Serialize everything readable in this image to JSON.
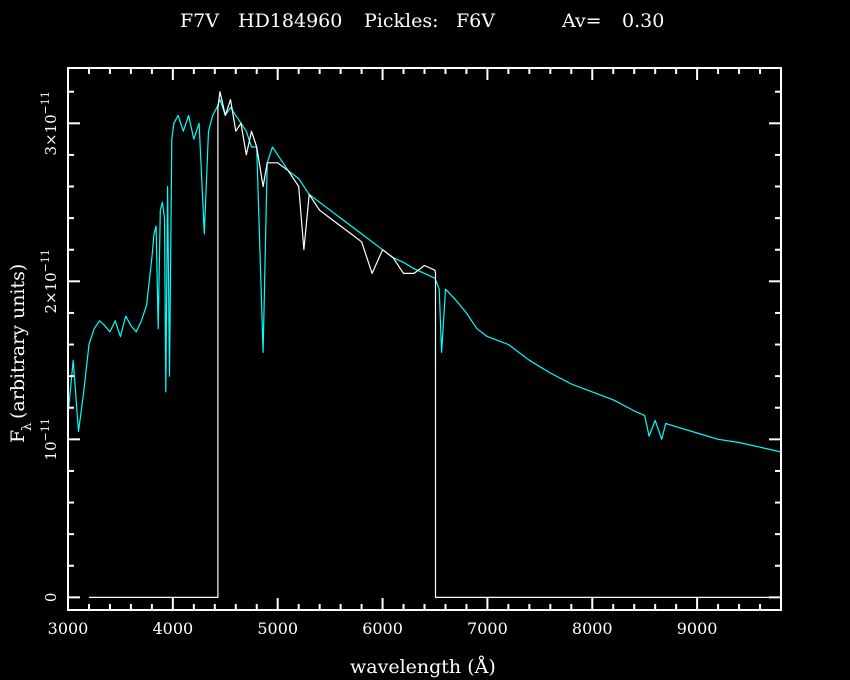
{
  "header": {
    "spectral_type": "F7V",
    "star": "HD184960",
    "pickles_label": "Pickles:",
    "pickles_type": "F6V",
    "av_label": "Av=",
    "av_value": "0.30"
  },
  "colors": {
    "background": "#000000",
    "axes": "#ffffff",
    "observed": "#ffffff",
    "template": "#00ffff"
  },
  "chart_data": {
    "type": "line",
    "title": "F7V   HD184960   Pickles: F6V        Av=   0.30",
    "xlabel": "wavelength (Å)",
    "ylabel": "Fλ (arbitrary units)",
    "xlim": [
      3000,
      9800
    ],
    "ylim": [
      -8e-13,
      3.35e-11
    ],
    "x_ticks": [
      3000,
      4000,
      5000,
      6000,
      7000,
      8000,
      9000
    ],
    "y_ticks": [
      {
        "value": 0,
        "label": "0"
      },
      {
        "value": 1e-11,
        "label": "10−11"
      },
      {
        "value": 2e-11,
        "label": "2×10−11"
      },
      {
        "value": 3e-11,
        "label": "3×10−11"
      }
    ],
    "series": [
      {
        "color": "#00ffff",
        "x": [
          3000,
          3050,
          3100,
          3150,
          3200,
          3250,
          3300,
          3350,
          3400,
          3450,
          3500,
          3550,
          3600,
          3650,
          3700,
          3750,
          3800,
          3820,
          3840,
          3860,
          3880,
          3900,
          3920,
          3933,
          3950,
          3968,
          3990,
          4010,
          4050,
          4100,
          4150,
          4200,
          4250,
          4300,
          4340,
          4380,
          4420,
          4450,
          4500,
          4550,
          4600,
          4650,
          4700,
          4750,
          4800,
          4861,
          4900,
          4950,
          5000,
          5100,
          5200,
          5300,
          5400,
          5500,
          5600,
          5700,
          5800,
          5900,
          6000,
          6100,
          6200,
          6300,
          6400,
          6500,
          6540,
          6563,
          6600,
          6700,
          6800,
          6900,
          7000,
          7200,
          7400,
          7600,
          7800,
          8000,
          8200,
          8400,
          8500,
          8542,
          8600,
          8662,
          8700,
          8800,
          9000,
          9200,
          9400,
          9600,
          9800
        ],
        "y": [
          1.15e-11,
          1.5e-11,
          1.05e-11,
          1.3e-11,
          1.6e-11,
          1.7e-11,
          1.75e-11,
          1.72e-11,
          1.68e-11,
          1.75e-11,
          1.65e-11,
          1.78e-11,
          1.72e-11,
          1.68e-11,
          1.75e-11,
          1.85e-11,
          2.15e-11,
          2.3e-11,
          2.35e-11,
          1.7e-11,
          2.45e-11,
          2.5e-11,
          2.4e-11,
          1.3e-11,
          2.6e-11,
          1.4e-11,
          2.9e-11,
          3e-11,
          3.05e-11,
          2.95e-11,
          3.05e-11,
          2.9e-11,
          3e-11,
          2.3e-11,
          2.95e-11,
          3.05e-11,
          3.1e-11,
          3.15e-11,
          3.05e-11,
          3.1e-11,
          3.05e-11,
          3e-11,
          2.95e-11,
          2.85e-11,
          2.85e-11,
          1.55e-11,
          2.75e-11,
          2.85e-11,
          2.8e-11,
          2.7e-11,
          2.65e-11,
          2.55e-11,
          2.5e-11,
          2.45e-11,
          2.4e-11,
          2.35e-11,
          2.3e-11,
          2.25e-11,
          2.2e-11,
          2.15e-11,
          2.12e-11,
          2.08e-11,
          2.05e-11,
          2.02e-11,
          1.95e-11,
          1.55e-11,
          1.95e-11,
          1.88e-11,
          1.8e-11,
          1.7e-11,
          1.65e-11,
          1.6e-11,
          1.5e-11,
          1.42e-11,
          1.35e-11,
          1.3e-11,
          1.25e-11,
          1.18e-11,
          1.15e-11,
          1.02e-11,
          1.12e-11,
          1e-11,
          1.1e-11,
          1.08e-11,
          1.04e-11,
          1e-11,
          9.8e-12,
          9.5e-12,
          9.2e-12
        ]
      },
      {
        "color": "#ffffff",
        "x": [
          3200,
          4430,
          4430,
          4450,
          4500,
          4550,
          4600,
          4650,
          4700,
          4750,
          4800,
          4861,
          4900,
          5000,
          5100,
          5200,
          5250,
          5300,
          5400,
          5500,
          5600,
          5700,
          5800,
          5900,
          6000,
          6100,
          6200,
          6300,
          6400,
          6500,
          6505,
          6505,
          9800
        ],
        "y": [
          0,
          0,
          3.1e-11,
          3.2e-11,
          3.05e-11,
          3.15e-11,
          2.95e-11,
          3e-11,
          2.8e-11,
          2.95e-11,
          2.85e-11,
          2.6e-11,
          2.75e-11,
          2.75e-11,
          2.7e-11,
          2.6e-11,
          2.2e-11,
          2.55e-11,
          2.45e-11,
          2.4e-11,
          2.35e-11,
          2.3e-11,
          2.25e-11,
          2.05e-11,
          2.2e-11,
          2.15e-11,
          2.05e-11,
          2.05e-11,
          2.1e-11,
          2.07e-11,
          2.05e-11,
          0,
          0
        ]
      }
    ]
  }
}
